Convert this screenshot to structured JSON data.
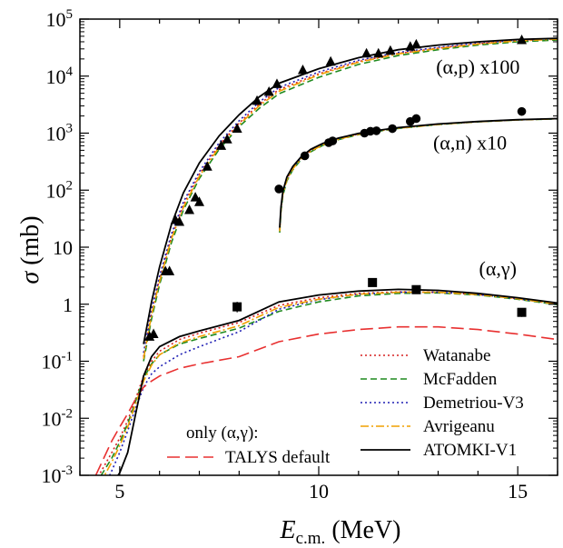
{
  "chart_data": {
    "type": "line",
    "xlabel": {
      "main": "E",
      "sub": "c.m.",
      "unit": " (MeV)"
    },
    "ylabel": {
      "symbol": "σ",
      "unit": " (mb)"
    },
    "y_scale": "log",
    "xlim": [
      4,
      16
    ],
    "ylim": [
      0.001,
      100000
    ],
    "grid": false,
    "x_ticks": [
      5,
      10,
      15
    ],
    "y_ticks": [
      {
        "value": 0.001,
        "label": "10",
        "exp": "-3"
      },
      {
        "value": 0.01,
        "label": "10",
        "exp": "-2"
      },
      {
        "value": 0.1,
        "label": "10",
        "exp": "-1"
      },
      {
        "value": 1,
        "label": "1",
        "exp": ""
      },
      {
        "value": 10,
        "label": "10",
        "exp": ""
      },
      {
        "value": 100,
        "label": "10",
        "exp": "2"
      },
      {
        "value": 1000,
        "label": "10",
        "exp": "3"
      },
      {
        "value": 10000,
        "label": "10",
        "exp": "4"
      },
      {
        "value": 100000,
        "label": "10",
        "exp": "5"
      }
    ],
    "annotations": [
      {
        "text": "(α,p) x100",
        "x": 14.0,
        "y": 11000
      },
      {
        "text": "(α,n) x10",
        "x": 13.8,
        "y": 520
      },
      {
        "text": "(α,γ)",
        "x": 14.5,
        "y": 3.2
      }
    ],
    "legend": {
      "position": "bottom-right",
      "heading": "only (α,γ):",
      "entries": [
        {
          "label": "Watanabe",
          "color": "#d62020",
          "style": "dotted"
        },
        {
          "label": "McFadden",
          "color": "#1f8a1f",
          "style": "dashed"
        },
        {
          "label": "Demetriou-V3",
          "color": "#1f1fb4",
          "style": "dotted"
        },
        {
          "label": "Avrigeanu",
          "color": "#f0a000",
          "style": "dashdot"
        },
        {
          "label": "TALYS default",
          "color": "#e83030",
          "style": "longdash"
        },
        {
          "label": "ATOMKI-V1",
          "color": "#000000",
          "style": "solid"
        }
      ]
    },
    "data_points": {
      "alpha_p": {
        "marker": "triangle",
        "x": [
          5.75,
          5.85,
          6.15,
          6.25,
          6.4,
          6.5,
          6.75,
          6.9,
          7.0,
          7.2,
          7.55,
          7.7,
          7.95,
          8.45,
          8.75,
          8.95,
          9.6,
          10.3,
          11.2,
          11.5,
          11.8,
          12.3,
          12.45,
          15.1
        ],
        "y": [
          0.27,
          0.3,
          3.8,
          3.8,
          30,
          28,
          45,
          75,
          62,
          260,
          600,
          780,
          1200,
          3700,
          5300,
          7300,
          12800,
          18000,
          25000,
          25000,
          28000,
          33000,
          36000,
          43000
        ]
      },
      "alpha_n": {
        "marker": "circle",
        "x": [
          9.0,
          9.65,
          10.25,
          10.35,
          11.15,
          11.3,
          11.45,
          11.85,
          12.3,
          12.45,
          15.1
        ],
        "y": [
          105,
          400,
          680,
          730,
          1000,
          1080,
          1100,
          1200,
          1600,
          1800,
          2400
        ]
      },
      "alpha_gamma": {
        "marker": "square",
        "x": [
          7.95,
          11.35,
          12.45,
          15.1
        ],
        "y": [
          0.9,
          2.4,
          1.8,
          0.72
        ],
        "yerr_low": [
          0.72,
          2.1,
          1.55,
          0.6
        ],
        "yerr_high": [
          1.1,
          2.6,
          2.0,
          0.85
        ]
      }
    },
    "curves": {
      "alpha_p": [
        {
          "name": "ATOMKI-V1",
          "x": [
            5.6,
            5.8,
            6.0,
            6.3,
            6.6,
            7.0,
            7.5,
            8.0,
            8.5,
            9.0,
            10,
            11,
            12,
            13,
            14,
            15,
            16
          ],
          "y": [
            0.2,
            1.1,
            4.5,
            25,
            90,
            300,
            900,
            2100,
            4300,
            7500,
            13500,
            21000,
            29000,
            35000,
            40000,
            44000,
            46000
          ]
        },
        {
          "name": "Watanabe",
          "x": [
            5.6,
            5.8,
            6.0,
            6.3,
            6.6,
            7.0,
            7.5,
            8.0,
            8.5,
            9.0,
            10,
            11,
            12,
            13,
            14,
            15,
            16
          ],
          "y": [
            0.12,
            0.7,
            2.8,
            15,
            55,
            190,
            620,
            1500,
            3200,
            5800,
            11000,
            18000,
            25000,
            31000,
            37000,
            42000,
            45000
          ]
        },
        {
          "name": "McFadden",
          "x": [
            5.6,
            5.8,
            6.0,
            6.3,
            6.6,
            7.0,
            7.5,
            8.0,
            8.5,
            9.0,
            10,
            11,
            12,
            13,
            14,
            15,
            16
          ],
          "y": [
            0.1,
            0.55,
            2.2,
            12,
            45,
            160,
            520,
            1300,
            2700,
            4900,
            9500,
            16000,
            23000,
            29000,
            35000,
            40000,
            43000
          ]
        },
        {
          "name": "Demetriou-V3",
          "x": [
            5.6,
            5.8,
            6.0,
            6.3,
            6.6,
            7.0,
            7.5,
            8.0,
            8.5,
            9.0,
            10,
            11,
            12,
            13,
            14,
            15,
            16
          ],
          "y": [
            0.14,
            0.8,
            3.1,
            17,
            62,
            210,
            680,
            1650,
            3500,
            6300,
            11800,
            19000,
            26000,
            32000,
            38000,
            43000,
            46000
          ]
        },
        {
          "name": "Avrigeanu",
          "x": [
            5.6,
            5.8,
            6.0,
            6.3,
            6.6,
            7.0,
            7.5,
            8.0,
            8.5,
            9.0,
            10,
            11,
            12,
            13,
            14,
            15,
            16
          ],
          "y": [
            0.11,
            0.65,
            2.5,
            14,
            50,
            175,
            570,
            1400,
            3000,
            5400,
            10500,
            17500,
            24500,
            30500,
            36500,
            41500,
            44500
          ]
        }
      ],
      "alpha_n": [
        {
          "name": "ATOMKI-V1",
          "x": [
            9.02,
            9.05,
            9.1,
            9.2,
            9.35,
            9.55,
            9.8,
            10.1,
            10.5,
            11,
            11.5,
            12,
            13,
            14,
            15,
            16
          ],
          "y": [
            22,
            50,
            95,
            170,
            260,
            380,
            520,
            660,
            820,
            990,
            1120,
            1250,
            1450,
            1600,
            1720,
            1800
          ]
        },
        {
          "name": "Watanabe",
          "x": [
            9.02,
            9.05,
            9.1,
            9.2,
            9.35,
            9.55,
            9.8,
            10.1,
            10.5,
            11,
            11.5,
            12,
            13,
            14,
            15,
            16
          ],
          "y": [
            20,
            46,
            88,
            158,
            245,
            360,
            495,
            635,
            795,
            965,
            1100,
            1230,
            1430,
            1590,
            1710,
            1790
          ]
        },
        {
          "name": "McFadden",
          "x": [
            9.02,
            9.05,
            9.1,
            9.2,
            9.35,
            9.55,
            9.8,
            10.1,
            10.5,
            11,
            11.5,
            12,
            13,
            14,
            15,
            16
          ],
          "y": [
            18,
            42,
            80,
            145,
            228,
            340,
            470,
            610,
            770,
            940,
            1080,
            1210,
            1410,
            1575,
            1700,
            1780
          ]
        },
        {
          "name": "Demetriou-V3",
          "x": [
            9.02,
            9.05,
            9.1,
            9.2,
            9.35,
            9.55,
            9.8,
            10.1,
            10.5,
            11,
            11.5,
            12,
            13,
            14,
            15,
            16
          ],
          "y": [
            21,
            48,
            92,
            165,
            252,
            370,
            508,
            648,
            808,
            978,
            1110,
            1240,
            1440,
            1595,
            1715,
            1795
          ]
        },
        {
          "name": "Avrigeanu",
          "x": [
            9.02,
            9.05,
            9.1,
            9.2,
            9.35,
            9.55,
            9.8,
            10.1,
            10.5,
            11,
            11.5,
            12,
            13,
            14,
            15,
            16
          ],
          "y": [
            19,
            44,
            84,
            152,
            236,
            350,
            482,
            622,
            782,
            952,
            1090,
            1220,
            1420,
            1582,
            1705,
            1785
          ]
        }
      ],
      "alpha_gamma": [
        {
          "name": "ATOMKI-V1",
          "x": [
            4.8,
            5.0,
            5.2,
            5.4,
            5.6,
            5.8,
            6.0,
            6.5,
            7.0,
            8.0,
            9.0,
            10,
            11,
            12,
            13,
            14,
            15,
            16
          ],
          "y": [
            0.0007,
            0.0011,
            0.0025,
            0.012,
            0.055,
            0.12,
            0.18,
            0.27,
            0.34,
            0.52,
            1.1,
            1.45,
            1.7,
            1.82,
            1.75,
            1.55,
            1.3,
            1.05
          ]
        },
        {
          "name": "Watanabe",
          "x": [
            4.4,
            4.8,
            5.0,
            5.2,
            5.4,
            5.6,
            5.8,
            6.0,
            6.5,
            7.0,
            8.0,
            9.0,
            10,
            11,
            12,
            13,
            14,
            15,
            16
          ],
          "y": [
            0.0008,
            0.0025,
            0.0045,
            0.009,
            0.022,
            0.055,
            0.1,
            0.15,
            0.24,
            0.31,
            0.48,
            0.95,
            1.3,
            1.55,
            1.65,
            1.62,
            1.48,
            1.25,
            1.0
          ]
        },
        {
          "name": "McFadden",
          "x": [
            4.4,
            4.8,
            5.0,
            5.2,
            5.4,
            5.6,
            5.8,
            6.0,
            6.5,
            7.0,
            8.0,
            9.0,
            10,
            11,
            12,
            13,
            14,
            15,
            16
          ],
          "y": [
            0.0007,
            0.002,
            0.0038,
            0.008,
            0.02,
            0.05,
            0.09,
            0.13,
            0.2,
            0.25,
            0.38,
            0.75,
            1.1,
            1.4,
            1.55,
            1.58,
            1.45,
            1.22,
            0.98
          ]
        },
        {
          "name": "Demetriou-V3",
          "x": [
            4.6,
            4.8,
            5.0,
            5.2,
            5.4,
            5.6,
            5.8,
            6.0,
            6.5,
            7.0,
            8.0,
            9.0,
            10,
            11,
            12,
            13,
            14,
            15,
            16
          ],
          "y": [
            0.0006,
            0.0012,
            0.0025,
            0.006,
            0.015,
            0.035,
            0.06,
            0.08,
            0.13,
            0.18,
            0.33,
            0.82,
            1.2,
            1.5,
            1.62,
            1.62,
            1.48,
            1.25,
            1.0
          ]
        },
        {
          "name": "Avrigeanu",
          "x": [
            4.5,
            4.8,
            5.0,
            5.2,
            5.4,
            5.6,
            5.8,
            6.0,
            6.5,
            7.0,
            8.0,
            9.0,
            10,
            11,
            12,
            13,
            14,
            15,
            16
          ],
          "y": [
            0.0007,
            0.0017,
            0.0033,
            0.007,
            0.018,
            0.045,
            0.085,
            0.13,
            0.21,
            0.27,
            0.42,
            0.88,
            1.22,
            1.5,
            1.62,
            1.62,
            1.48,
            1.25,
            1.0
          ]
        },
        {
          "name": "TALYS default",
          "x": [
            4.4,
            4.8,
            5.0,
            5.2,
            5.4,
            5.6,
            5.8,
            6.0,
            6.5,
            7.0,
            8.0,
            9.0,
            10,
            11,
            12,
            13,
            14,
            15,
            16
          ],
          "y": [
            0.001,
            0.004,
            0.007,
            0.012,
            0.022,
            0.035,
            0.045,
            0.055,
            0.075,
            0.09,
            0.12,
            0.22,
            0.3,
            0.36,
            0.4,
            0.4,
            0.36,
            0.3,
            0.24
          ]
        }
      ]
    }
  }
}
